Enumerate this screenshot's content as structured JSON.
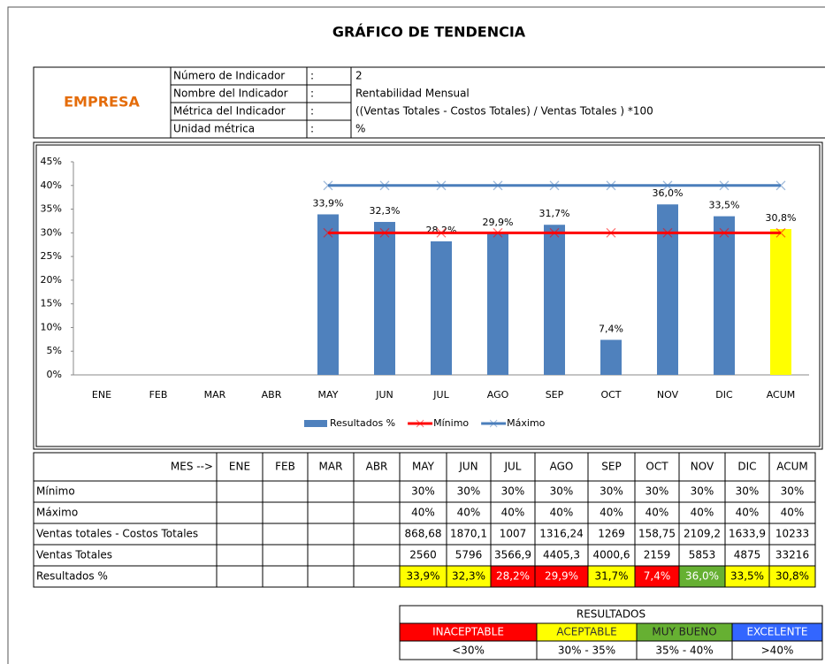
{
  "title": "GRÁFICO DE TENDENCIA",
  "header": {
    "company": "EMPRESA",
    "rows": [
      [
        "Número de Indicador",
        ":",
        "2"
      ],
      [
        "Nombre del Indicador",
        ":",
        "Rentabilidad Mensual"
      ],
      [
        "Métrica del Indicador",
        ":",
        "((Ventas Totales - Costos Totales) / Ventas Totales ) *100"
      ],
      [
        "Unidad métrica",
        ":",
        "%"
      ]
    ]
  },
  "chart_data": {
    "type": "bar",
    "categories": [
      "ENE",
      "FEB",
      "MAR",
      "ABR",
      "MAY",
      "JUN",
      "JUL",
      "AGO",
      "SEP",
      "OCT",
      "NOV",
      "DIC",
      "ACUM"
    ],
    "ylim": [
      0,
      45
    ],
    "yticks": [
      {
        "value": 0,
        "label": "0%"
      },
      {
        "value": 5,
        "label": "5%"
      },
      {
        "value": 10,
        "label": "10%"
      },
      {
        "value": 15,
        "label": "15%"
      },
      {
        "value": 20,
        "label": "20%"
      },
      {
        "value": 25,
        "label": "25%"
      },
      {
        "value": 30,
        "label": "30%"
      },
      {
        "value": 35,
        "label": "35%"
      },
      {
        "value": 40,
        "label": "40%"
      },
      {
        "value": 45,
        "label": "45%"
      }
    ],
    "legend": "bottom",
    "series": [
      {
        "name": "Resultados %",
        "type": "bar",
        "color": "#4f81bd",
        "colors": [
          "#4f81bd",
          "#4f81bd",
          "#4f81bd",
          "#4f81bd",
          "#4f81bd",
          "#4f81bd",
          "#4f81bd",
          "#4f81bd",
          "#4f81bd",
          "#4f81bd",
          "#4f81bd",
          "#4f81bd",
          "#ffff00"
        ],
        "values": [
          null,
          null,
          null,
          null,
          33.9,
          32.3,
          28.2,
          29.9,
          31.7,
          7.4,
          36.0,
          33.5,
          30.8
        ],
        "value_labels": [
          null,
          null,
          null,
          null,
          "33,9%",
          "32,3%",
          "28,2%",
          "29,9%",
          "31,7%",
          "7,4%",
          "36,0%",
          "33,5%",
          "30,8%"
        ]
      },
      {
        "name": "Mínimo",
        "type": "line",
        "color": "#ff0000",
        "values": [
          null,
          null,
          null,
          null,
          30,
          30,
          30,
          30,
          30,
          30,
          30,
          30,
          30
        ]
      },
      {
        "name": "Máximo",
        "type": "line",
        "color": "#4a7ebb",
        "values": [
          null,
          null,
          null,
          null,
          40,
          40,
          40,
          40,
          40,
          40,
          40,
          40,
          40
        ]
      }
    ]
  },
  "table": {
    "header": [
      "MES -->",
      "ENE",
      "FEB",
      "MAR",
      "ABR",
      "MAY",
      "JUN",
      "JUL",
      "AGO",
      "SEP",
      "OCT",
      "NOV",
      "DIC",
      "ACUM"
    ],
    "rows": [
      {
        "label": "Mínimo",
        "cells": [
          null,
          null,
          null,
          null,
          "30%",
          "30%",
          "30%",
          "30%",
          "30%",
          "30%",
          "30%",
          "30%",
          "30%"
        ]
      },
      {
        "label": "Máximo",
        "cells": [
          null,
          null,
          null,
          null,
          "40%",
          "40%",
          "40%",
          "40%",
          "40%",
          "40%",
          "40%",
          "40%",
          "40%"
        ]
      },
      {
        "label": "Ventas totales - Costos Totales",
        "cells": [
          null,
          null,
          null,
          null,
          "868,68",
          "1870,1",
          "1007",
          "1316,24",
          "1269",
          "158,75",
          "2109,2",
          "1633,9",
          "10233"
        ]
      },
      {
        "label": "Ventas Totales",
        "cells": [
          null,
          null,
          null,
          null,
          "2560",
          "5796",
          "3566,9",
          "4405,3",
          "4000,6",
          "2159",
          "5853",
          "4875",
          "33216"
        ]
      },
      {
        "label": "Resultados %",
        "cells": [
          null,
          null,
          null,
          null,
          "33,9%",
          "32,3%",
          "28,2%",
          "29,9%",
          "31,7%",
          "7,4%",
          "36,0%",
          "33,5%",
          "30,8%"
        ],
        "fills": [
          null,
          null,
          null,
          null,
          "#ffff00",
          "#ffff00",
          "#ff0000",
          "#ff0000",
          "#ffff00",
          "#ff0000",
          "#66b032",
          "#ffff00",
          "#ffff00"
        ]
      }
    ]
  },
  "legend_table": {
    "title": "RESULTADOS",
    "levels": [
      {
        "label": "INACEPTABLE",
        "range": "<30%",
        "color": "#ff0000"
      },
      {
        "label": "ACEPTABLE",
        "range": "30% - 35%",
        "color": "#ffff00"
      },
      {
        "label": "MUY BUENO",
        "range": "35% - 40%",
        "color": "#66b032"
      },
      {
        "label": "EXCELENTE",
        "range": ">40%",
        "color": "#3366ff"
      }
    ]
  }
}
